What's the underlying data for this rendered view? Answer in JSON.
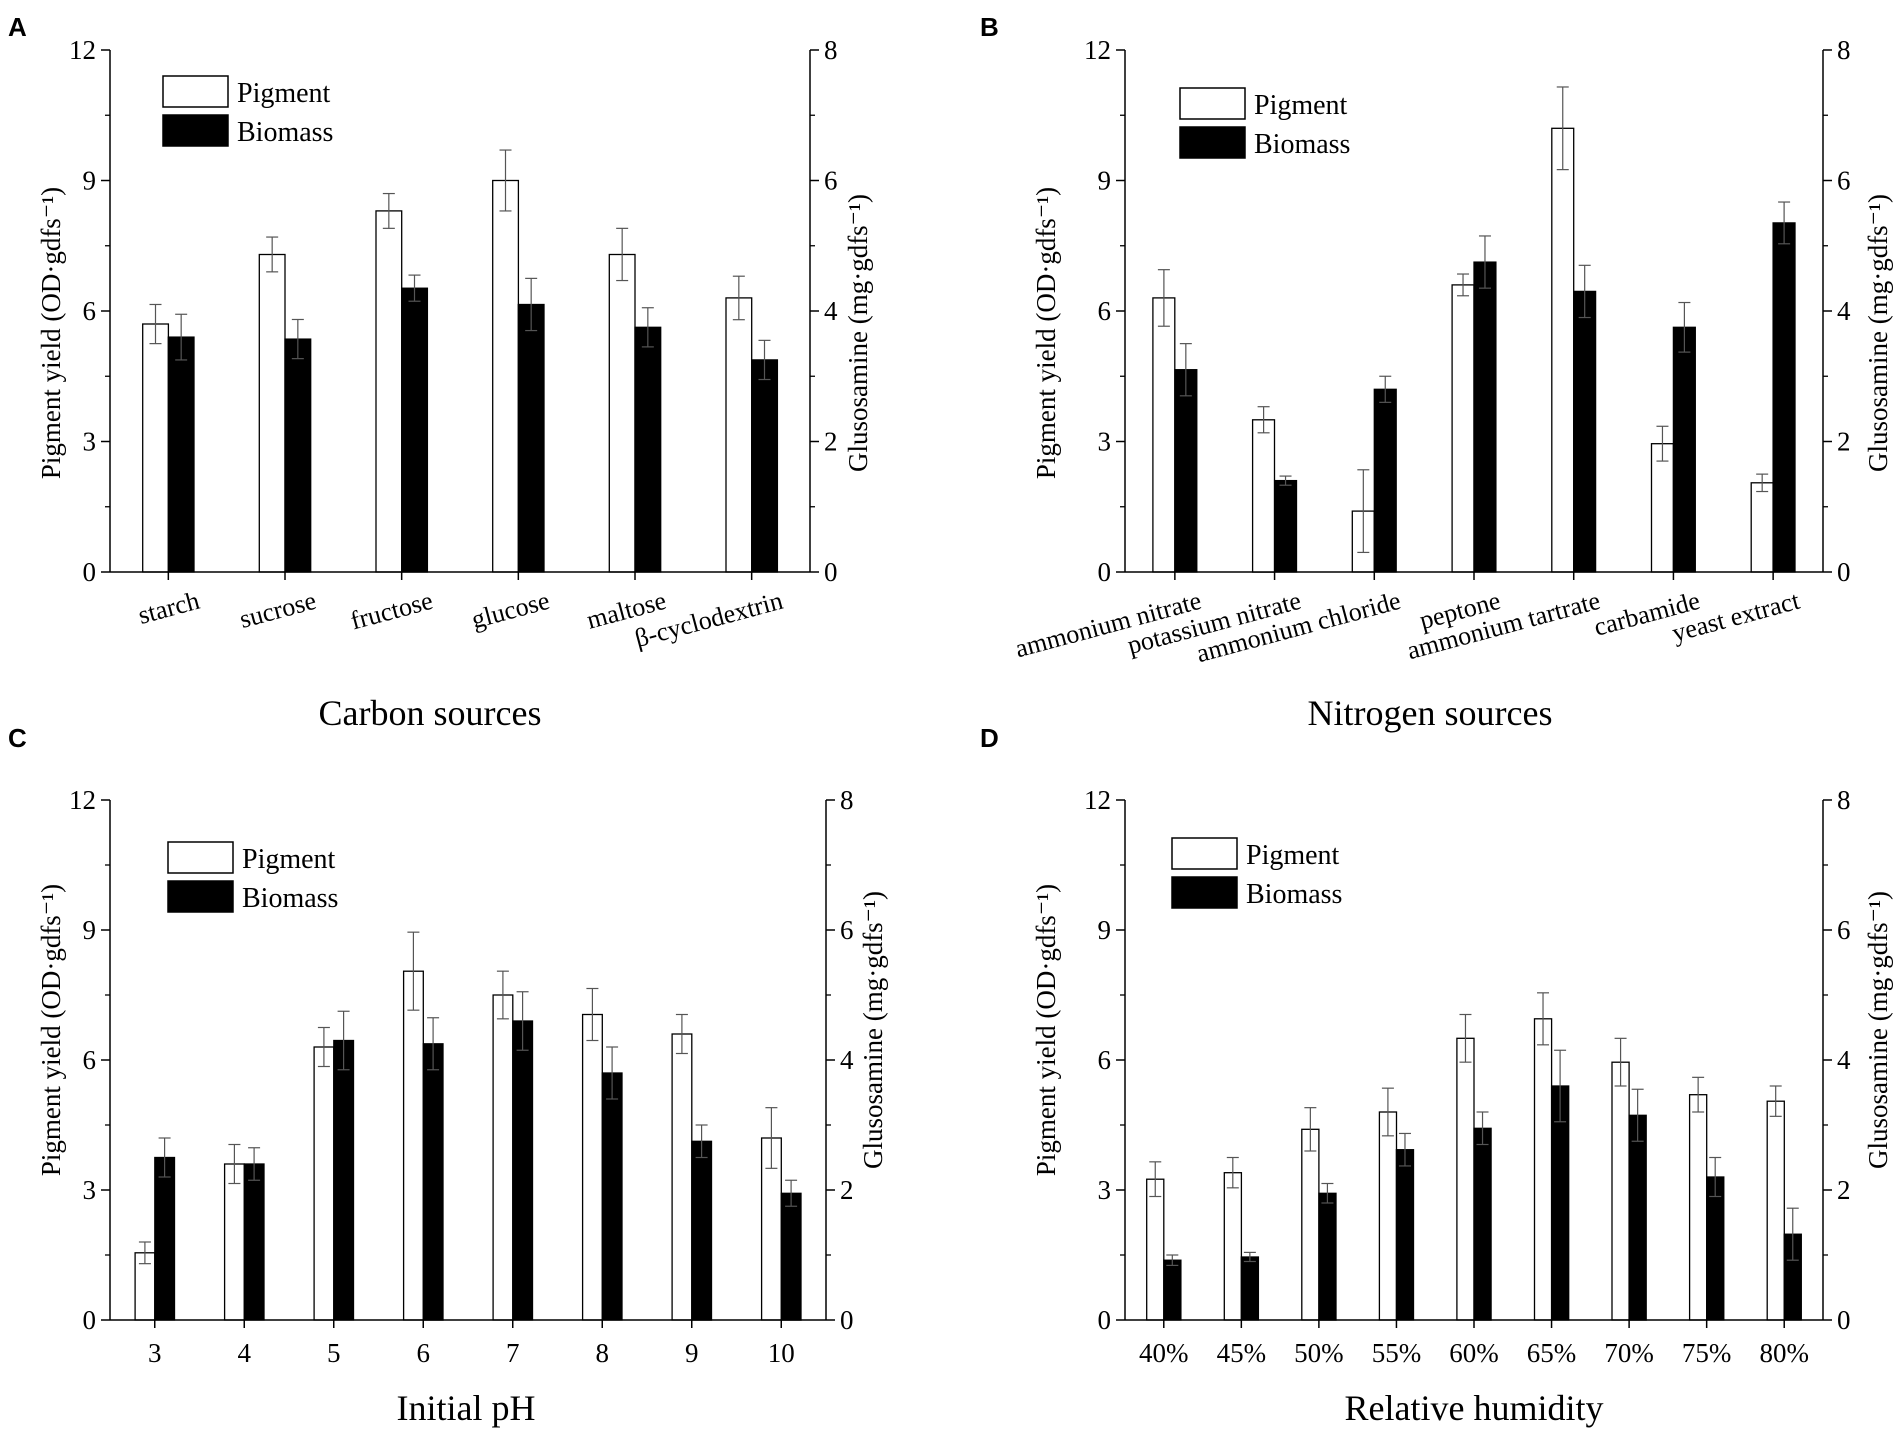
{
  "figure": {
    "colors": {
      "pigment_fill": "#ffffff",
      "biomass_fill": "#000000",
      "axis": "#000000",
      "error_bar": "#555555"
    },
    "legend": {
      "pigment": "Pigment",
      "biomass": "Biomass"
    }
  },
  "chart_data": [
    {
      "panel": "A",
      "type": "bar",
      "xlabel": "Carbon sources",
      "ylabel": "Pigment yield (OD·gdfs⁻¹)",
      "y2label": "Glusosamine (mg·gdfs⁻¹)",
      "ylim": [
        0,
        12
      ],
      "y2lim": [
        0,
        8
      ],
      "yticks": [
        "0",
        "3",
        "6",
        "9",
        "12"
      ],
      "y2ticks": [
        "0",
        "2",
        "4",
        "6",
        "8"
      ],
      "categories": [
        "starch",
        "sucrose",
        "fructose",
        "glucose",
        "maltose",
        "β-cyclodextrin"
      ],
      "series": [
        {
          "name": "Pigment",
          "axis": "left",
          "values": [
            5.7,
            7.3,
            8.3,
            9.0,
            7.3,
            6.3
          ],
          "errors": [
            0.45,
            0.4,
            0.4,
            0.7,
            0.6,
            0.5
          ]
        },
        {
          "name": "Biomass",
          "axis": "right",
          "values": [
            3.6,
            3.57,
            4.35,
            4.1,
            3.75,
            3.25
          ],
          "errors": [
            0.35,
            0.3,
            0.2,
            0.4,
            0.3,
            0.3
          ]
        }
      ]
    },
    {
      "panel": "B",
      "type": "bar",
      "xlabel": "Nitrogen sources",
      "ylabel": "Pigment yield (OD·gdfs⁻¹)",
      "y2label": "Glusosamine (mg·gdfs⁻¹)",
      "ylim": [
        0,
        12
      ],
      "y2lim": [
        0,
        8
      ],
      "yticks": [
        "0",
        "3",
        "6",
        "9",
        "12"
      ],
      "y2ticks": [
        "0",
        "2",
        "4",
        "6",
        "8"
      ],
      "categories": [
        "ammonium nitrate",
        "potassium nitrate",
        "ammonium chloride",
        "peptone",
        "ammonium tartrate",
        "carbamide",
        "yeast extract"
      ],
      "series": [
        {
          "name": "Pigment",
          "axis": "left",
          "values": [
            6.3,
            3.5,
            1.4,
            6.6,
            10.2,
            2.95,
            2.05
          ],
          "errors": [
            0.65,
            0.3,
            0.95,
            0.25,
            0.95,
            0.4,
            0.2
          ]
        },
        {
          "name": "Biomass",
          "axis": "right",
          "values": [
            3.1,
            1.4,
            2.8,
            4.75,
            4.3,
            3.75,
            5.35
          ],
          "errors": [
            0.4,
            0.07,
            0.2,
            0.4,
            0.4,
            0.38,
            0.32
          ]
        }
      ]
    },
    {
      "panel": "C",
      "type": "bar",
      "xlabel": "Initial pH",
      "ylabel": "Pigment yield (OD·gdfs⁻¹)",
      "y2label": "Glusosamine (mg·gdfs⁻¹)",
      "ylim": [
        0,
        12
      ],
      "y2lim": [
        0,
        8
      ],
      "yticks": [
        "0",
        "3",
        "6",
        "9",
        "12"
      ],
      "y2ticks": [
        "0",
        "2",
        "4",
        "6",
        "8"
      ],
      "categories": [
        "3",
        "4",
        "5",
        "6",
        "7",
        "8",
        "9",
        "10"
      ],
      "series": [
        {
          "name": "Pigment",
          "axis": "left",
          "values": [
            1.55,
            3.6,
            6.3,
            8.05,
            7.5,
            7.05,
            6.6,
            4.2
          ],
          "errors": [
            0.25,
            0.45,
            0.45,
            0.9,
            0.55,
            0.6,
            0.45,
            0.7
          ]
        },
        {
          "name": "Biomass",
          "axis": "right",
          "values": [
            2.5,
            2.4,
            4.3,
            4.25,
            4.6,
            3.8,
            2.75,
            1.95
          ],
          "errors": [
            0.3,
            0.25,
            0.45,
            0.4,
            0.45,
            0.4,
            0.25,
            0.2
          ]
        }
      ]
    },
    {
      "panel": "D",
      "type": "bar",
      "xlabel": "Relative humidity",
      "ylabel": "Pigment yield (OD·gdfs⁻¹)",
      "y2label": "Glusosamine (mg·gdfs⁻¹)",
      "ylim": [
        0,
        12
      ],
      "y2lim": [
        0,
        8
      ],
      "yticks": [
        "0",
        "3",
        "6",
        "9",
        "12"
      ],
      "y2ticks": [
        "0",
        "2",
        "4",
        "6",
        "8"
      ],
      "categories": [
        "40%",
        "45%",
        "50%",
        "55%",
        "60%",
        "65%",
        "70%",
        "75%",
        "80%"
      ],
      "series": [
        {
          "name": "Pigment",
          "axis": "left",
          "values": [
            3.25,
            3.4,
            4.4,
            4.8,
            6.5,
            6.95,
            5.95,
            5.2,
            5.05
          ],
          "errors": [
            0.4,
            0.35,
            0.5,
            0.55,
            0.55,
            0.6,
            0.55,
            0.4,
            0.35
          ]
        },
        {
          "name": "Biomass",
          "axis": "right",
          "values": [
            0.92,
            0.97,
            1.95,
            2.62,
            2.95,
            3.6,
            3.15,
            2.2,
            1.32
          ],
          "errors": [
            0.08,
            0.07,
            0.15,
            0.25,
            0.25,
            0.55,
            0.4,
            0.3,
            0.4
          ]
        }
      ]
    }
  ]
}
